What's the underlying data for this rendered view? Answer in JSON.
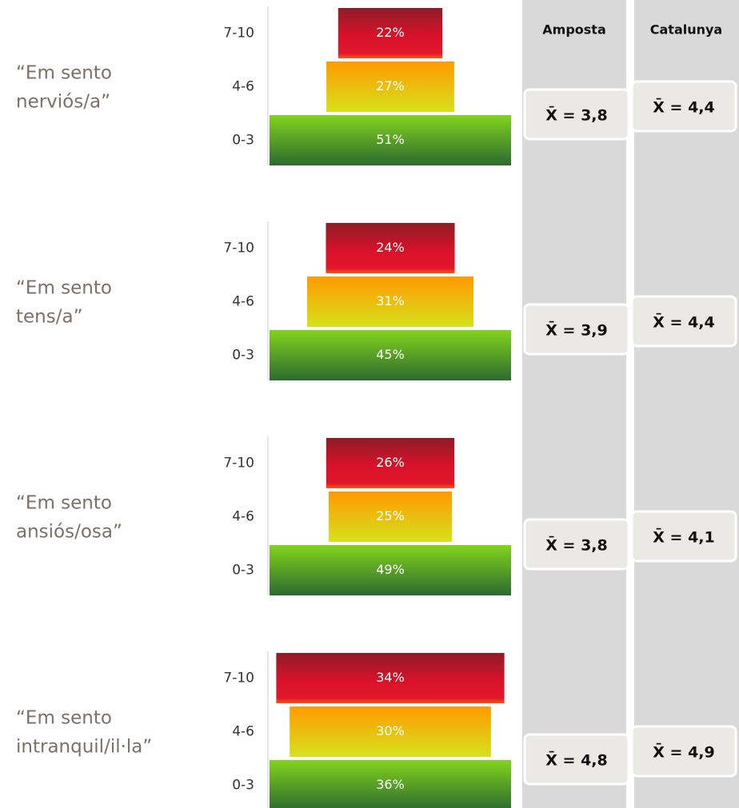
{
  "columns": [
    "Amposta",
    "Catalunya"
  ],
  "chart_data": [
    {
      "type": "pyramid",
      "title_lines": [
        "“Em sento",
        "nerviós/a”"
      ],
      "categories": [
        "7-10",
        "4-6",
        "0-3"
      ],
      "values": [
        22,
        27,
        51
      ],
      "value_labels": [
        "22%",
        "27%",
        "51%"
      ],
      "means": [
        "X̄ = 3,8",
        "X̄ = 4,4"
      ]
    },
    {
      "type": "pyramid",
      "title_lines": [
        "“Em sento",
        "tens/a”"
      ],
      "categories": [
        "7-10",
        "4-6",
        "0-3"
      ],
      "values": [
        24,
        31,
        45
      ],
      "value_labels": [
        "24%",
        "31%",
        "45%"
      ],
      "means": [
        "X̄ = 3,9",
        "X̄ = 4,4"
      ]
    },
    {
      "type": "pyramid",
      "title_lines": [
        "“Em sento",
        "ansiós/osa”"
      ],
      "categories": [
        "7-10",
        "4-6",
        "0-3"
      ],
      "values": [
        26,
        25,
        49
      ],
      "value_labels": [
        "26%",
        "25%",
        "49%"
      ],
      "means": [
        "X̄ = 3,8",
        "X̄ = 4,1"
      ]
    },
    {
      "type": "pyramid",
      "title_lines": [
        "“Em sento",
        "intranquil/il·la”"
      ],
      "categories": [
        "7-10",
        "4-6",
        "0-3"
      ],
      "values": [
        34,
        30,
        36
      ],
      "value_labels": [
        "34%",
        "30%",
        "36%"
      ],
      "means": [
        "X̄ = 4,8",
        "X̄ = 4,9"
      ]
    }
  ]
}
